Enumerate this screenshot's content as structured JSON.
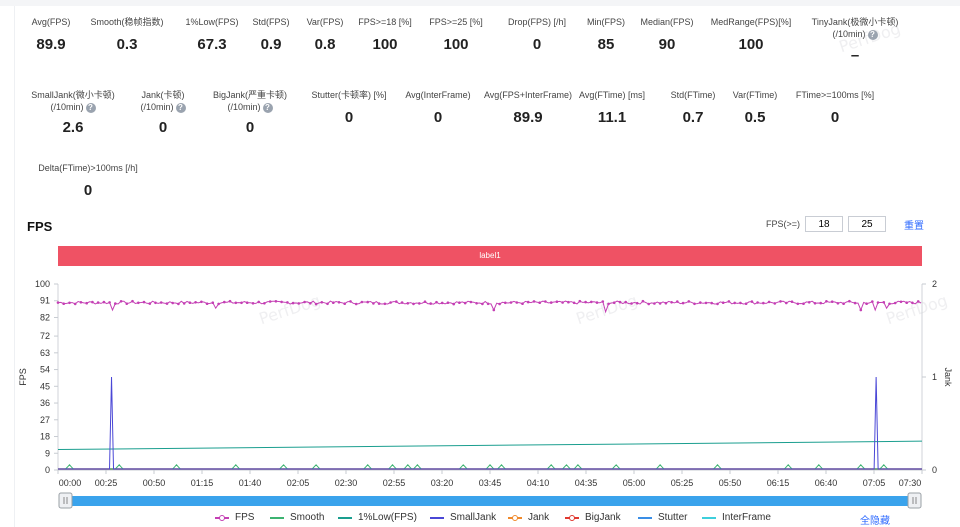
{
  "stats_row1": [
    {
      "label": "Avg(FPS)",
      "value": "89.9",
      "help": false
    },
    {
      "label": "Smooth(稳帧指数)",
      "value": "0.3",
      "help": true
    },
    {
      "label": "1%Low(FPS)",
      "value": "67.3",
      "help": false
    },
    {
      "label": "Std(FPS)",
      "value": "0.9",
      "help": false
    },
    {
      "label": "Var(FPS)",
      "value": "0.8",
      "help": false
    },
    {
      "label": "FPS>=18 [%]",
      "value": "100",
      "help": false
    },
    {
      "label": "FPS>=25 [%]",
      "value": "100",
      "help": false
    },
    {
      "label": "Drop(FPS) [/h]",
      "value": "0",
      "help": true
    },
    {
      "label": "Min(FPS)",
      "value": "85",
      "help": false
    },
    {
      "label": "Median(FPS)",
      "value": "90",
      "help": false
    },
    {
      "label": "MedRange(FPS)[%]",
      "value": "100",
      "help": false
    },
    {
      "label": "TinyJank(极微小卡顿)",
      "label2": "(/10min)",
      "value": "–",
      "help": true
    }
  ],
  "stats_row2": [
    {
      "label": "SmallJank(微小卡顿)",
      "label2": "(/10min)",
      "value": "2.6",
      "help": true
    },
    {
      "label": "Jank(卡顿)",
      "label2": "(/10min)",
      "value": "0",
      "help": true
    },
    {
      "label": "BigJank(严重卡顿)",
      "label2": "(/10min)",
      "value": "0",
      "help": true
    },
    {
      "label": "Stutter(卡顿率) [%]",
      "value": "0",
      "help": false
    },
    {
      "label": "Avg(InterFrame)",
      "value": "0",
      "help": false
    },
    {
      "label": "Avg(FPS+InterFrame)",
      "value": "89.9",
      "help": false
    },
    {
      "label": "Avg(FTime) [ms]",
      "value": "11.1",
      "help": false
    },
    {
      "label": "Std(FTime)",
      "value": "0.7",
      "help": false
    },
    {
      "label": "Var(FTime)",
      "value": "0.5",
      "help": false
    },
    {
      "label": "FTime>=100ms [%]",
      "value": "0",
      "help": false
    }
  ],
  "stats_row3": [
    {
      "label": "Delta(FTime)>100ms [/h]",
      "value": "0",
      "help": true
    }
  ],
  "watermark": "PerfDog",
  "chart_header": {
    "title": "FPS",
    "threshold_label": "FPS(>=)",
    "threshold1": "18",
    "threshold2": "25",
    "reset_label": "重置",
    "label_band": "label1"
  },
  "chart_data": {
    "type": "line",
    "x": [
      "00:00",
      "00:25",
      "00:50",
      "01:15",
      "01:40",
      "02:05",
      "02:30",
      "02:55",
      "03:20",
      "03:45",
      "04:10",
      "04:35",
      "05:00",
      "05:25",
      "05:50",
      "06:15",
      "06:40",
      "07:05",
      "07:30"
    ],
    "duration_seconds": 452,
    "ylabel": "FPS",
    "ylabel_right": "Jank",
    "yticks_left": [
      0,
      9,
      18,
      27,
      36,
      45,
      54,
      63,
      72,
      82,
      91,
      100
    ],
    "yticks_right": [
      0,
      1,
      2
    ],
    "ylim": [
      0,
      100
    ],
    "ylim_right": [
      0,
      2
    ],
    "series": [
      {
        "name": "FPS",
        "color": "#c43fb4",
        "axis": "left",
        "baseline": 90,
        "dips": [
          {
            "t": 28,
            "v": 86
          },
          {
            "t": 83,
            "v": 87
          },
          {
            "t": 228,
            "v": 86
          },
          {
            "t": 286,
            "v": 85
          },
          {
            "t": 420,
            "v": 86
          },
          {
            "t": 427,
            "v": 86
          },
          {
            "t": 434,
            "v": 87
          }
        ]
      },
      {
        "name": "Smooth",
        "color": "#3cb371",
        "axis": "right",
        "values_approx": "near 0 with small bumps"
      },
      {
        "name": "1%Low(FPS)",
        "color": "#1a9e8f",
        "axis": "left",
        "start": 11,
        "end": 15.5
      },
      {
        "name": "SmallJank",
        "color": "#4a47d6",
        "axis": "right",
        "spikes": [
          {
            "t": 28,
            "v": 1.0
          },
          {
            "t": 428,
            "v": 1.0
          }
        ]
      },
      {
        "name": "Jank",
        "color": "#f08a2c",
        "axis": "right",
        "values_approx": "0"
      },
      {
        "name": "BigJank",
        "color": "#e0382f",
        "axis": "right",
        "values_approx": "0"
      },
      {
        "name": "Stutter",
        "color": "#3a8ee6",
        "axis": "right",
        "values_approx": "0"
      },
      {
        "name": "InterFrame",
        "color": "#3ecfdc",
        "axis": "right",
        "values_approx": "0"
      }
    ]
  },
  "legend": {
    "hide_all": "全隐藏"
  }
}
